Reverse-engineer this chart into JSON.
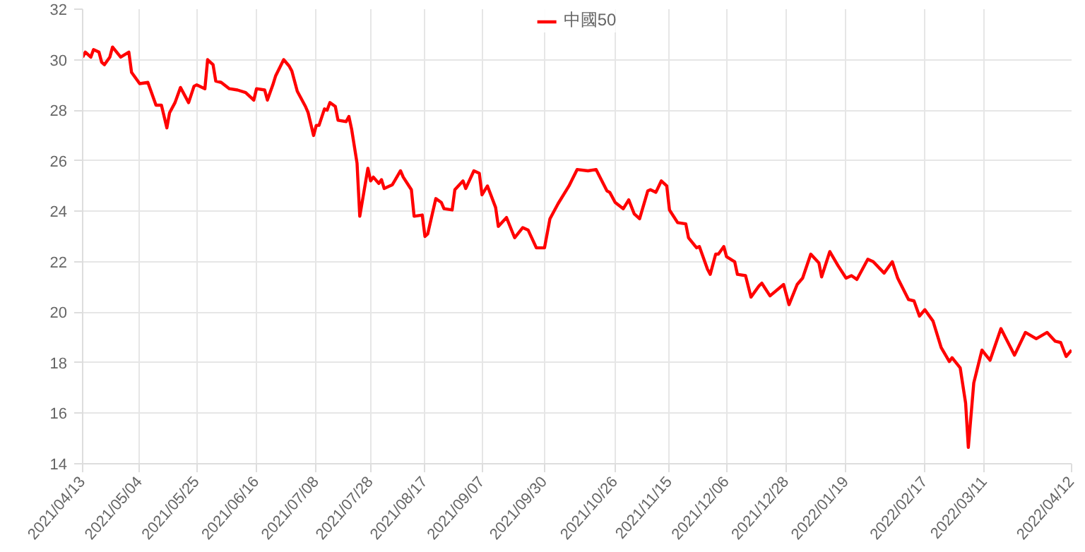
{
  "chart_data": {
    "type": "line",
    "legend": "top",
    "grid": true,
    "marker": "none",
    "line_style": "solid",
    "xlim": [
      "2021-04-13",
      "2022-04-12"
    ],
    "ylim": [
      14,
      32
    ],
    "yticks": [
      14,
      16,
      18,
      20,
      22,
      24,
      26,
      28,
      30,
      32
    ],
    "xticks": [
      {
        "value": "2021-04-13",
        "label": "2021/04/13"
      },
      {
        "value": "2021-05-04",
        "label": "2021/05/04"
      },
      {
        "value": "2021-05-25",
        "label": "2021/05/25"
      },
      {
        "value": "2021-06-16",
        "label": "2021/06/16"
      },
      {
        "value": "2021-07-08",
        "label": "2021/07/08"
      },
      {
        "value": "2021-07-28",
        "label": "2021/07/28"
      },
      {
        "value": "2021-08-17",
        "label": "2021/08/17"
      },
      {
        "value": "2021-09-07",
        "label": "2021/09/07"
      },
      {
        "value": "2021-09-30",
        "label": "2021/09/30"
      },
      {
        "value": "2021-10-26",
        "label": "2021/10/26"
      },
      {
        "value": "2021-11-15",
        "label": "2021/11/15"
      },
      {
        "value": "2021-12-06",
        "label": "2021/12/06"
      },
      {
        "value": "2021-12-28",
        "label": "2021/12/28"
      },
      {
        "value": "2022-01-19",
        "label": "2022/01/19"
      },
      {
        "value": "2022-02-17",
        "label": "2022/02/17"
      },
      {
        "value": "2022-03-11",
        "label": "2022/03/11"
      },
      {
        "value": "2022-04-12",
        "label": "2022/04/12"
      }
    ],
    "series": [
      {
        "name": "中國50",
        "color": "#ff0000",
        "x": [
          "2021-04-13",
          "2021-04-14",
          "2021-04-16",
          "2021-04-17",
          "2021-04-19",
          "2021-04-20",
          "2021-04-21",
          "2021-04-23",
          "2021-04-24",
          "2021-04-27",
          "2021-04-30",
          "2021-05-01",
          "2021-05-04",
          "2021-05-07",
          "2021-05-08",
          "2021-05-10",
          "2021-05-12",
          "2021-05-14",
          "2021-05-15",
          "2021-05-17",
          "2021-05-19",
          "2021-05-22",
          "2021-05-24",
          "2021-05-25",
          "2021-05-28",
          "2021-05-29",
          "2021-05-31",
          "2021-06-01",
          "2021-06-03",
          "2021-06-06",
          "2021-06-09",
          "2021-06-12",
          "2021-06-15",
          "2021-06-16",
          "2021-06-19",
          "2021-06-20",
          "2021-06-22",
          "2021-06-23",
          "2021-06-26",
          "2021-06-28",
          "2021-06-29",
          "2021-07-01",
          "2021-07-04",
          "2021-07-05",
          "2021-07-07",
          "2021-07-08",
          "2021-07-09",
          "2021-07-11",
          "2021-07-12",
          "2021-07-13",
          "2021-07-15",
          "2021-07-16",
          "2021-07-19",
          "2021-07-20",
          "2021-07-21",
          "2021-07-23",
          "2021-07-24",
          "2021-07-27",
          "2021-07-28",
          "2021-07-29",
          "2021-07-31",
          "2021-08-01",
          "2021-08-02",
          "2021-08-05",
          "2021-08-08",
          "2021-08-09",
          "2021-08-12",
          "2021-08-13",
          "2021-08-16",
          "2021-08-17",
          "2021-08-18",
          "2021-08-21",
          "2021-08-23",
          "2021-08-24",
          "2021-08-27",
          "2021-08-28",
          "2021-08-31",
          "2021-09-01",
          "2021-09-04",
          "2021-09-06",
          "2021-09-07",
          "2021-09-09",
          "2021-09-12",
          "2021-09-13",
          "2021-09-16",
          "2021-09-19",
          "2021-09-22",
          "2021-09-24",
          "2021-09-27",
          "2021-09-30",
          "2021-10-02",
          "2021-10-05",
          "2021-10-09",
          "2021-10-12",
          "2021-10-16",
          "2021-10-19",
          "2021-10-23",
          "2021-10-24",
          "2021-10-26",
          "2021-10-29",
          "2021-10-31",
          "2021-11-02",
          "2021-11-04",
          "2021-11-07",
          "2021-11-08",
          "2021-11-10",
          "2021-11-12",
          "2021-11-14",
          "2021-11-15",
          "2021-11-18",
          "2021-11-21",
          "2021-11-22",
          "2021-11-25",
          "2021-11-26",
          "2021-11-29",
          "2021-11-30",
          "2021-12-02",
          "2021-12-03",
          "2021-12-05",
          "2021-12-06",
          "2021-12-09",
          "2021-12-10",
          "2021-12-13",
          "2021-12-15",
          "2021-12-18",
          "2021-12-19",
          "2021-12-22",
          "2021-12-27",
          "2021-12-29",
          "2022-01-01",
          "2022-01-03",
          "2022-01-06",
          "2022-01-09",
          "2022-01-10",
          "2022-01-13",
          "2022-01-16",
          "2022-01-19",
          "2022-01-21",
          "2022-01-23",
          "2022-01-27",
          "2022-01-29",
          "2022-02-02",
          "2022-02-05",
          "2022-02-07",
          "2022-02-11",
          "2022-02-13",
          "2022-02-15",
          "2022-02-17",
          "2022-02-20",
          "2022-02-23",
          "2022-02-26",
          "2022-02-27",
          "2022-03-02",
          "2022-03-04",
          "2022-03-05",
          "2022-03-07",
          "2022-03-10",
          "2022-03-13",
          "2022-03-17",
          "2022-03-22",
          "2022-03-26",
          "2022-03-30",
          "2022-04-03",
          "2022-04-06",
          "2022-04-08",
          "2022-04-10",
          "2022-04-12"
        ],
        "values": [
          30.1,
          30.3,
          30.1,
          30.4,
          30.3,
          29.9,
          29.8,
          30.1,
          30.5,
          30.1,
          30.3,
          29.5,
          29.05,
          29.1,
          28.8,
          28.2,
          28.2,
          27.3,
          27.9,
          28.3,
          28.9,
          28.3,
          28.95,
          29.0,
          28.85,
          30.0,
          29.8,
          29.15,
          29.1,
          28.85,
          28.8,
          28.7,
          28.4,
          28.85,
          28.8,
          28.4,
          29.0,
          29.35,
          30.0,
          29.75,
          29.55,
          28.75,
          28.15,
          27.9,
          27.0,
          27.4,
          27.4,
          28.05,
          28.0,
          28.3,
          28.15,
          27.6,
          27.55,
          27.75,
          27.25,
          25.9,
          23.8,
          25.7,
          25.2,
          25.35,
          25.1,
          25.25,
          24.9,
          25.05,
          25.6,
          25.35,
          24.85,
          23.8,
          23.85,
          23.0,
          23.1,
          24.5,
          24.35,
          24.1,
          24.05,
          24.85,
          25.2,
          24.9,
          25.6,
          25.5,
          24.65,
          25.0,
          24.15,
          23.4,
          23.75,
          22.95,
          23.35,
          23.25,
          22.55,
          22.55,
          23.7,
          24.3,
          25.0,
          25.65,
          25.6,
          25.65,
          24.8,
          24.75,
          24.35,
          24.1,
          24.45,
          23.9,
          23.7,
          24.8,
          24.85,
          24.75,
          25.2,
          25.0,
          24.05,
          23.55,
          23.5,
          22.95,
          22.55,
          22.6,
          21.7,
          21.5,
          22.3,
          22.3,
          22.6,
          22.2,
          22.0,
          21.5,
          21.45,
          20.6,
          21.05,
          21.15,
          20.65,
          21.1,
          20.3,
          21.1,
          21.35,
          22.3,
          21.95,
          21.4,
          22.4,
          21.85,
          21.35,
          21.45,
          21.3,
          22.1,
          22.0,
          21.55,
          22.0,
          21.35,
          20.5,
          20.45,
          19.85,
          20.1,
          19.65,
          18.6,
          18.05,
          18.2,
          17.8,
          16.4,
          14.65,
          17.2,
          18.5,
          18.1,
          19.35,
          18.3,
          19.2,
          18.95,
          19.2,
          18.85,
          18.8,
          18.25,
          18.5
        ]
      }
    ]
  }
}
